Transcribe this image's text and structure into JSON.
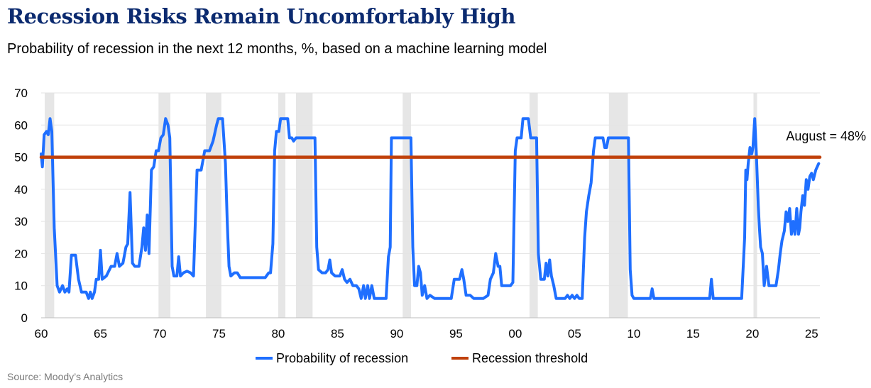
{
  "title": "Recession Risks Remain Uncomfortably High",
  "subtitle": "Probability of recession in the next 12 months, %, based on a machine learning model",
  "source": "Source: Moody’s Analytics",
  "chart_data": {
    "type": "line",
    "xlim": [
      1960,
      2025.7
    ],
    "ylim": [
      0,
      70
    ],
    "y_ticks": [
      0,
      10,
      20,
      30,
      40,
      50,
      60,
      70
    ],
    "x_ticks": [
      {
        "year": 1960,
        "label": "60"
      },
      {
        "year": 1965,
        "label": "65"
      },
      {
        "year": 1970,
        "label": "70"
      },
      {
        "year": 1975,
        "label": "75"
      },
      {
        "year": 1980,
        "label": "80"
      },
      {
        "year": 1985,
        "label": "85"
      },
      {
        "year": 1990,
        "label": "90"
      },
      {
        "year": 1995,
        "label": "95"
      },
      {
        "year": 2000,
        "label": "00"
      },
      {
        "year": 2005,
        "label": "05"
      },
      {
        "year": 2010,
        "label": "10"
      },
      {
        "year": 2015,
        "label": "15"
      },
      {
        "year": 2020,
        "label": "20"
      },
      {
        "year": 2025,
        "label": "25"
      }
    ],
    "grid": "horizontal",
    "legend_position": "bottom",
    "recession_shading": [
      [
        1960.3,
        1961.1
      ],
      [
        1969.9,
        1970.9
      ],
      [
        1973.9,
        1975.2
      ],
      [
        1980.0,
        1980.6
      ],
      [
        1981.5,
        1982.9
      ],
      [
        1990.5,
        1991.2
      ],
      [
        2001.2,
        2001.9
      ],
      [
        2007.9,
        2009.5
      ],
      [
        2020.1,
        2020.4
      ]
    ],
    "series": [
      {
        "name": "Probability of recession",
        "color": "#1f6fff",
        "points": [
          [
            1960.0,
            51
          ],
          [
            1960.1,
            47
          ],
          [
            1960.25,
            57
          ],
          [
            1960.45,
            58
          ],
          [
            1960.6,
            57
          ],
          [
            1960.75,
            62
          ],
          [
            1960.9,
            58
          ],
          [
            1961.1,
            28
          ],
          [
            1961.35,
            10
          ],
          [
            1961.55,
            8
          ],
          [
            1961.8,
            10
          ],
          [
            1962.0,
            8
          ],
          [
            1962.2,
            9
          ],
          [
            1962.35,
            8
          ],
          [
            1962.55,
            19.5
          ],
          [
            1962.9,
            19.5
          ],
          [
            1963.15,
            12
          ],
          [
            1963.4,
            8
          ],
          [
            1963.8,
            8
          ],
          [
            1964.0,
            6
          ],
          [
            1964.15,
            8
          ],
          [
            1964.3,
            6
          ],
          [
            1964.5,
            8
          ],
          [
            1964.65,
            12
          ],
          [
            1964.85,
            12
          ],
          [
            1965.0,
            21
          ],
          [
            1965.15,
            12
          ],
          [
            1965.5,
            13
          ],
          [
            1965.9,
            16
          ],
          [
            1966.2,
            16
          ],
          [
            1966.4,
            20
          ],
          [
            1966.6,
            16
          ],
          [
            1966.9,
            17
          ],
          [
            1967.15,
            22
          ],
          [
            1967.3,
            23
          ],
          [
            1967.5,
            39
          ],
          [
            1967.7,
            17
          ],
          [
            1967.9,
            16
          ],
          [
            1968.25,
            16
          ],
          [
            1968.5,
            22
          ],
          [
            1968.65,
            28
          ],
          [
            1968.8,
            21
          ],
          [
            1968.95,
            32
          ],
          [
            1969.1,
            20
          ],
          [
            1969.3,
            46
          ],
          [
            1969.5,
            47
          ],
          [
            1969.7,
            52
          ],
          [
            1969.9,
            52
          ],
          [
            1970.1,
            56
          ],
          [
            1970.3,
            57
          ],
          [
            1970.5,
            62
          ],
          [
            1970.7,
            60
          ],
          [
            1970.85,
            56
          ],
          [
            1971.05,
            16
          ],
          [
            1971.2,
            13
          ],
          [
            1971.45,
            13
          ],
          [
            1971.6,
            19
          ],
          [
            1971.75,
            13
          ],
          [
            1972.0,
            14
          ],
          [
            1972.3,
            14.5
          ],
          [
            1972.6,
            14
          ],
          [
            1972.85,
            13
          ],
          [
            1973.15,
            46
          ],
          [
            1973.5,
            46
          ],
          [
            1973.8,
            52
          ],
          [
            1974.2,
            52
          ],
          [
            1974.5,
            55
          ],
          [
            1974.8,
            60
          ],
          [
            1974.95,
            62
          ],
          [
            1975.3,
            62
          ],
          [
            1975.55,
            48
          ],
          [
            1975.7,
            30
          ],
          [
            1975.85,
            16
          ],
          [
            1976.0,
            13
          ],
          [
            1976.3,
            14
          ],
          [
            1976.55,
            14
          ],
          [
            1976.8,
            12.5
          ],
          [
            1977.4,
            12.5
          ],
          [
            1978.0,
            12.5
          ],
          [
            1978.5,
            12.5
          ],
          [
            1978.9,
            12.5
          ],
          [
            1979.2,
            14
          ],
          [
            1979.35,
            14
          ],
          [
            1979.55,
            23
          ],
          [
            1979.7,
            52
          ],
          [
            1979.85,
            58
          ],
          [
            1980.05,
            58
          ],
          [
            1980.2,
            62
          ],
          [
            1980.4,
            62
          ],
          [
            1980.6,
            62
          ],
          [
            1980.8,
            62
          ],
          [
            1980.95,
            56
          ],
          [
            1981.15,
            56
          ],
          [
            1981.3,
            55
          ],
          [
            1981.5,
            56
          ],
          [
            1982.3,
            56
          ],
          [
            1982.95,
            56
          ],
          [
            1983.1,
            56
          ],
          [
            1983.25,
            22
          ],
          [
            1983.4,
            15
          ],
          [
            1983.7,
            14
          ],
          [
            1984.0,
            14
          ],
          [
            1984.2,
            15
          ],
          [
            1984.35,
            18
          ],
          [
            1984.5,
            14
          ],
          [
            1984.8,
            13
          ],
          [
            1985.2,
            13
          ],
          [
            1985.4,
            15
          ],
          [
            1985.6,
            12
          ],
          [
            1985.8,
            11
          ],
          [
            1986.05,
            12
          ],
          [
            1986.3,
            10
          ],
          [
            1986.6,
            10
          ],
          [
            1986.8,
            9
          ],
          [
            1987.0,
            6
          ],
          [
            1987.2,
            10
          ],
          [
            1987.35,
            6
          ],
          [
            1987.55,
            10
          ],
          [
            1987.7,
            6
          ],
          [
            1987.9,
            10
          ],
          [
            1988.1,
            6
          ],
          [
            1988.5,
            6
          ],
          [
            1988.8,
            6
          ],
          [
            1989.1,
            6
          ],
          [
            1989.3,
            19
          ],
          [
            1989.45,
            22
          ],
          [
            1989.55,
            56
          ],
          [
            1990.5,
            56
          ],
          [
            1991.1,
            56
          ],
          [
            1991.2,
            56
          ],
          [
            1991.35,
            22
          ],
          [
            1991.5,
            10
          ],
          [
            1991.7,
            10
          ],
          [
            1991.85,
            16
          ],
          [
            1992.0,
            14
          ],
          [
            1992.15,
            7
          ],
          [
            1992.35,
            10
          ],
          [
            1992.55,
            6
          ],
          [
            1992.8,
            7
          ],
          [
            1993.2,
            6
          ],
          [
            1993.8,
            6
          ],
          [
            1994.3,
            6
          ],
          [
            1994.6,
            6
          ],
          [
            1994.85,
            12
          ],
          [
            1995.3,
            12
          ],
          [
            1995.5,
            15
          ],
          [
            1995.65,
            12
          ],
          [
            1995.85,
            7
          ],
          [
            1996.2,
            7
          ],
          [
            1996.5,
            6
          ],
          [
            1996.8,
            6
          ],
          [
            1997.3,
            6
          ],
          [
            1997.7,
            7
          ],
          [
            1997.9,
            12
          ],
          [
            1998.15,
            14
          ],
          [
            1998.35,
            20
          ],
          [
            1998.55,
            16
          ],
          [
            1998.7,
            16
          ],
          [
            1998.85,
            10
          ],
          [
            1999.2,
            10
          ],
          [
            1999.6,
            10
          ],
          [
            1999.8,
            11
          ],
          [
            2000.0,
            52
          ],
          [
            2000.15,
            56
          ],
          [
            2000.5,
            56
          ],
          [
            2000.65,
            62
          ],
          [
            2001.1,
            62
          ],
          [
            2001.3,
            56
          ],
          [
            2001.45,
            56
          ],
          [
            2001.6,
            56
          ],
          [
            2001.8,
            56
          ],
          [
            2001.95,
            20
          ],
          [
            2002.15,
            12
          ],
          [
            2002.45,
            12
          ],
          [
            2002.6,
            17
          ],
          [
            2002.75,
            13
          ],
          [
            2002.9,
            18
          ],
          [
            2003.05,
            13
          ],
          [
            2003.25,
            10
          ],
          [
            2003.45,
            6
          ],
          [
            2003.8,
            6
          ],
          [
            2004.2,
            6
          ],
          [
            2004.4,
            7
          ],
          [
            2004.6,
            6
          ],
          [
            2004.8,
            7
          ],
          [
            2005.0,
            6
          ],
          [
            2005.2,
            7
          ],
          [
            2005.4,
            6
          ],
          [
            2005.65,
            6
          ],
          [
            2005.85,
            25
          ],
          [
            2006.0,
            33
          ],
          [
            2006.2,
            38
          ],
          [
            2006.4,
            42
          ],
          [
            2006.6,
            52
          ],
          [
            2006.75,
            56
          ],
          [
            2007.4,
            56
          ],
          [
            2007.55,
            53
          ],
          [
            2007.7,
            53
          ],
          [
            2007.85,
            56
          ],
          [
            2008.5,
            56
          ],
          [
            2009.3,
            56
          ],
          [
            2009.55,
            56
          ],
          [
            2009.7,
            15
          ],
          [
            2009.85,
            7
          ],
          [
            2010.0,
            6
          ],
          [
            2010.3,
            6
          ],
          [
            2011.0,
            6
          ],
          [
            2011.4,
            6
          ],
          [
            2011.55,
            9
          ],
          [
            2011.7,
            6
          ],
          [
            2012.5,
            6
          ],
          [
            2013.5,
            6
          ],
          [
            2014.5,
            6
          ],
          [
            2015.5,
            6
          ],
          [
            2016.2,
            6
          ],
          [
            2016.4,
            6
          ],
          [
            2016.55,
            12
          ],
          [
            2016.7,
            6
          ],
          [
            2017.5,
            6
          ],
          [
            2018.3,
            6
          ],
          [
            2018.8,
            6
          ],
          [
            2019.1,
            6
          ],
          [
            2019.35,
            25
          ],
          [
            2019.45,
            46
          ],
          [
            2019.55,
            43
          ],
          [
            2019.65,
            48
          ],
          [
            2019.8,
            53
          ],
          [
            2019.95,
            51
          ],
          [
            2020.05,
            53
          ],
          [
            2020.2,
            62
          ],
          [
            2020.35,
            50
          ],
          [
            2020.5,
            35
          ],
          [
            2020.6,
            28
          ],
          [
            2020.7,
            22
          ],
          [
            2020.85,
            20
          ],
          [
            2021.0,
            10
          ],
          [
            2021.2,
            16
          ],
          [
            2021.4,
            10
          ],
          [
            2021.7,
            10
          ],
          [
            2022.0,
            10
          ],
          [
            2022.2,
            15
          ],
          [
            2022.35,
            20
          ],
          [
            2022.5,
            24
          ],
          [
            2022.7,
            27
          ],
          [
            2022.85,
            33
          ],
          [
            2023.0,
            30
          ],
          [
            2023.15,
            34
          ],
          [
            2023.3,
            26
          ],
          [
            2023.45,
            30
          ],
          [
            2023.6,
            26
          ],
          [
            2023.75,
            34
          ],
          [
            2023.9,
            26
          ],
          [
            2024.0,
            28
          ],
          [
            2024.1,
            33
          ],
          [
            2024.25,
            38
          ],
          [
            2024.4,
            35
          ],
          [
            2024.55,
            43
          ],
          [
            2024.7,
            40
          ],
          [
            2024.85,
            44
          ],
          [
            2025.0,
            45
          ],
          [
            2025.15,
            43
          ],
          [
            2025.35,
            46
          ],
          [
            2025.6,
            48
          ]
        ]
      },
      {
        "name": "Recession threshold",
        "color": "#c0410b",
        "points": [
          [
            1960.0,
            50
          ],
          [
            2025.7,
            50
          ]
        ]
      }
    ],
    "annotations": [
      {
        "text": "August = 48%",
        "x": 2025.6,
        "y": 48
      }
    ]
  }
}
